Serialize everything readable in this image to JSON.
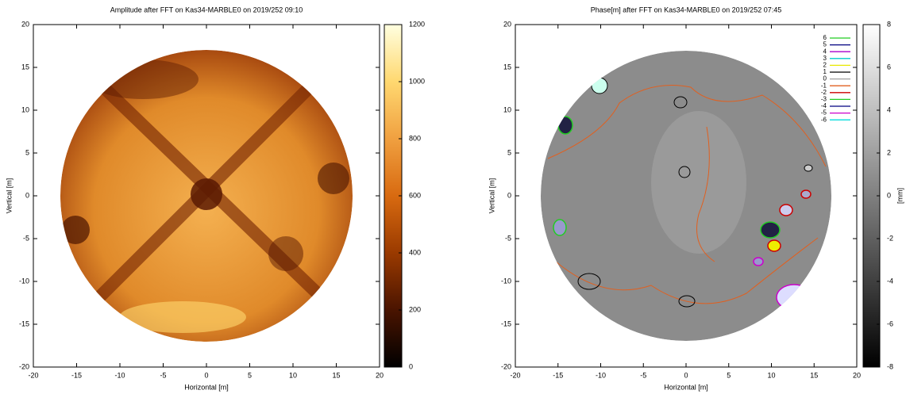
{
  "chart_data": [
    {
      "type": "heatmap",
      "title": "Amplitude after FFT on Kas34-MARBLE0 on 2019/252 09:10",
      "x_label": "Horizontal [m]",
      "y_label": "Vertical [m]",
      "xlim": [
        -20,
        20
      ],
      "xticks": [
        -20,
        -15,
        -10,
        -5,
        0,
        5,
        10,
        15,
        20
      ],
      "ylim": [
        -20,
        20
      ],
      "yticks": [
        -20,
        -15,
        -10,
        -5,
        0,
        5,
        10,
        15,
        20
      ],
      "colorbar": {
        "lim": [
          0,
          1200
        ],
        "ticks": [
          0,
          200,
          400,
          600,
          800,
          1000,
          1200
        ],
        "colormap": [
          "#000000",
          "#4a1400",
          "#9a3a00",
          "#d86a10",
          "#f0a040",
          "#ffd870",
          "#ffffe0"
        ]
      }
    },
    {
      "type": "contour",
      "title": "Phase[m] after FFT on Kas34-MARBLE0 on 2019/252 07:45",
      "x_label": "Horizontal [m]",
      "y_label": "Vertical [m]",
      "xlim": [
        -20,
        20
      ],
      "xticks": [
        -20,
        -15,
        -10,
        -5,
        0,
        5,
        10,
        15,
        20
      ],
      "ylim": [
        -20,
        20
      ],
      "yticks": [
        -20,
        -15,
        -10,
        -5,
        0,
        5,
        10,
        15,
        20
      ],
      "colorbar": {
        "label": "[mm]",
        "lim": [
          -8,
          8
        ],
        "ticks": [
          -8,
          -6,
          -4,
          -2,
          0,
          2,
          4,
          6,
          8
        ],
        "colormap": [
          "#000000",
          "#ffffff"
        ]
      },
      "series": [
        {
          "name": "6",
          "color": "#22cc22"
        },
        {
          "name": "5",
          "color": "#000080"
        },
        {
          "name": "4",
          "color": "#aa00cc"
        },
        {
          "name": "3",
          "color": "#00cccc"
        },
        {
          "name": "2",
          "color": "#e8e800"
        },
        {
          "name": "1",
          "color": "#000000"
        },
        {
          "name": "0",
          "color": "#a0a0a0"
        },
        {
          "name": "-1",
          "color": "#e06020"
        },
        {
          "name": "-2",
          "color": "#cc0000"
        },
        {
          "name": "-3",
          "color": "#22cc22"
        },
        {
          "name": "-4",
          "color": "#000080"
        },
        {
          "name": "-5",
          "color": "#cc00cc"
        },
        {
          "name": "-6",
          "color": "#00dddd"
        }
      ]
    }
  ]
}
